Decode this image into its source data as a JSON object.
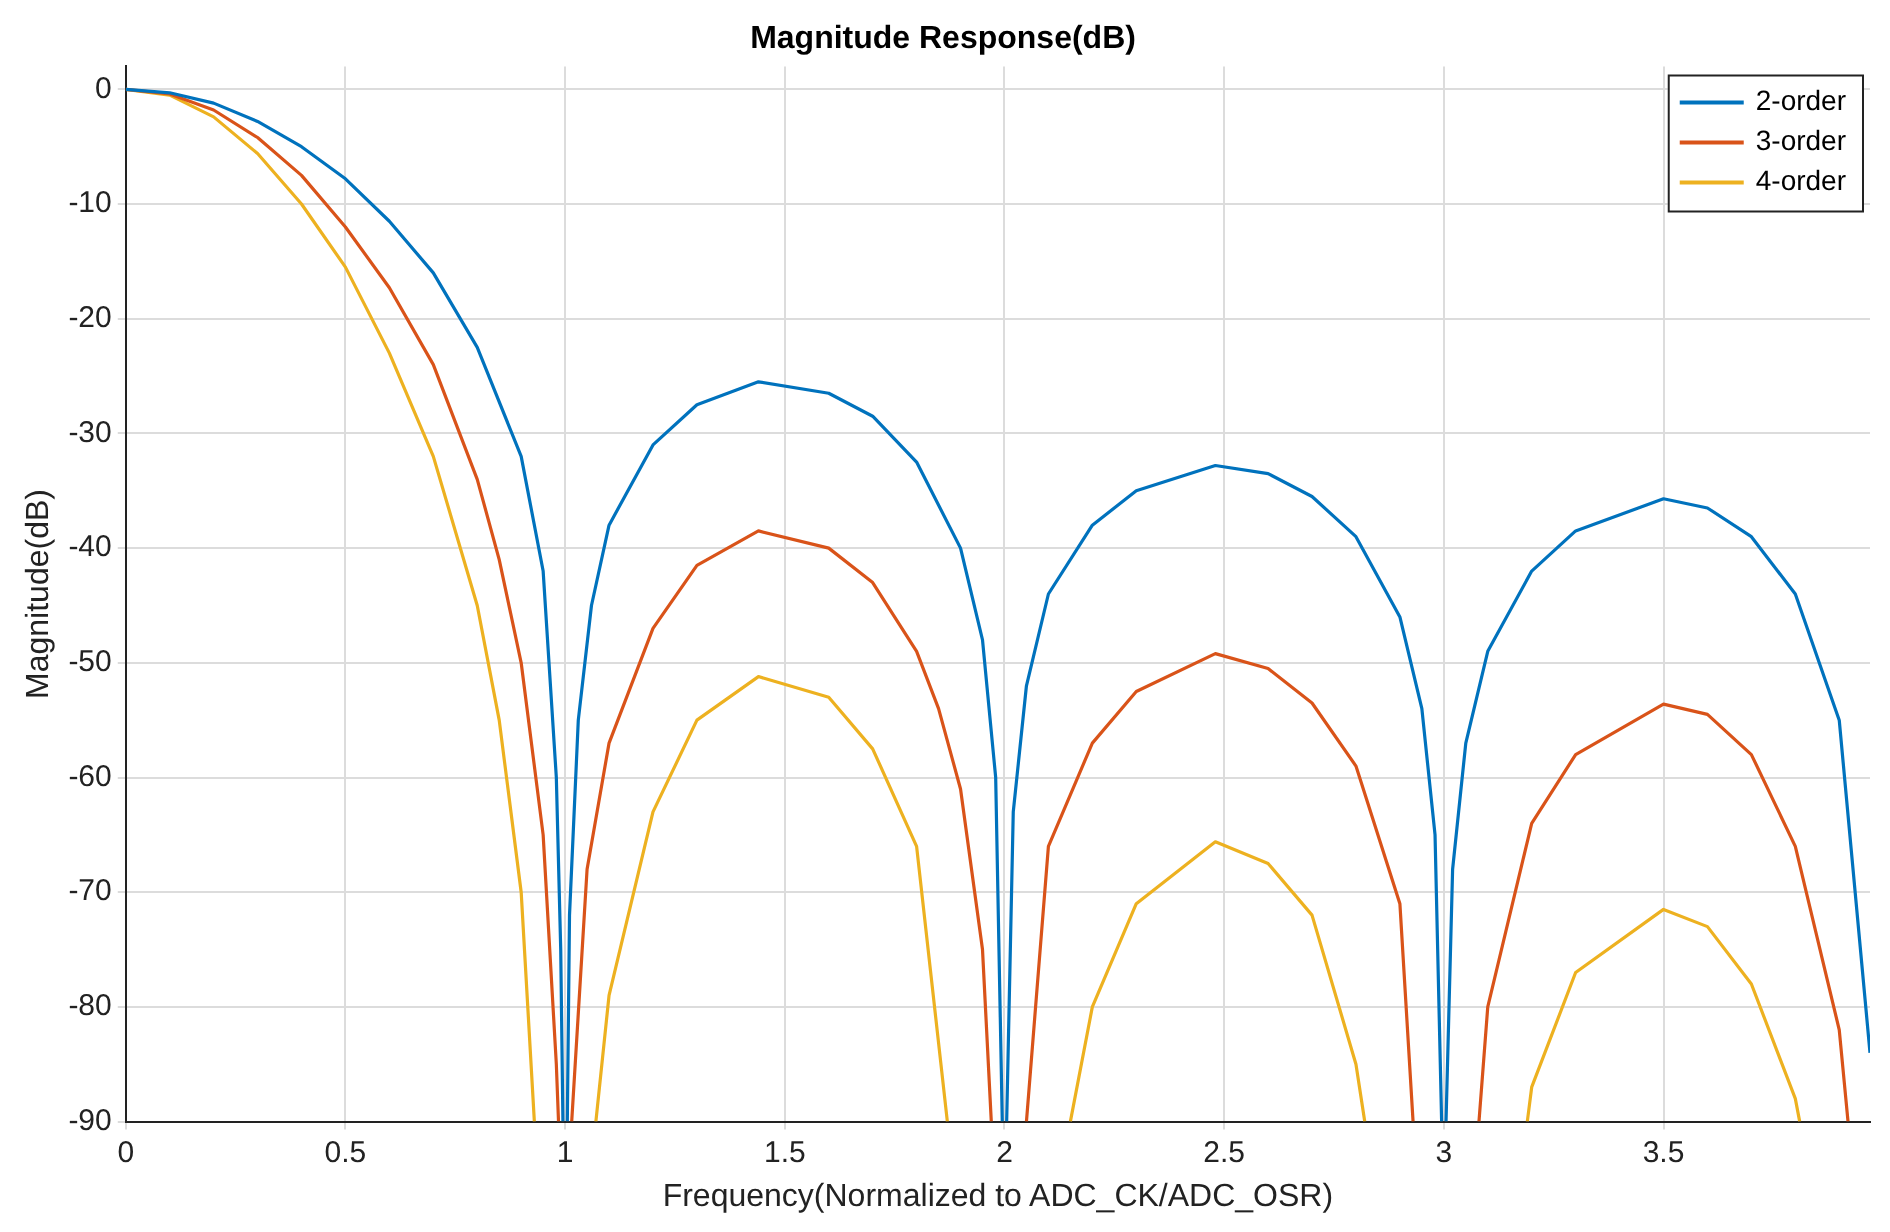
{
  "chart_data": {
    "type": "line",
    "title": "Magnitude Response(dB)",
    "xlabel": "Frequency(Normalized to ADC_CK/ADC_OSR)",
    "ylabel": "Magnitude(dB)",
    "xlim": [
      0,
      3.97
    ],
    "xticks": [
      0,
      0.5,
      1,
      1.5,
      2,
      2.5,
      3,
      3.5
    ],
    "ylim": [
      -90,
      2
    ],
    "yticks": [
      -90,
      -80,
      -70,
      -60,
      -50,
      -40,
      -30,
      -20,
      -10,
      0
    ],
    "grid": true,
    "legend": "top right",
    "marker": "none",
    "line_style": "solid",
    "series": [
      {
        "name": "2-order",
        "color": "#0072bd",
        "x": [
          0,
          0.1,
          0.2,
          0.3,
          0.4,
          0.5,
          0.6,
          0.7,
          0.8,
          0.9,
          0.95,
          0.98,
          0.99,
          0.995,
          1,
          1.005,
          1.01,
          1.03,
          1.06,
          1.1,
          1.2,
          1.3,
          1.44,
          1.6,
          1.7,
          1.8,
          1.9,
          1.95,
          1.98,
          1.995,
          2,
          2.005,
          2.02,
          2.05,
          2.1,
          2.2,
          2.3,
          2.48,
          2.6,
          2.7,
          2.8,
          2.9,
          2.95,
          2.98,
          2.995,
          3,
          3.005,
          3.02,
          3.05,
          3.1,
          3.2,
          3.3,
          3.5,
          3.6,
          3.7,
          3.8,
          3.9,
          3.97
        ],
        "values": [
          0,
          -0.3,
          -1.2,
          -2.8,
          -5,
          -7.8,
          -11.5,
          -16,
          -22.5,
          -32,
          -42,
          -60,
          -75,
          -90,
          null,
          -90,
          -72,
          -55,
          -45,
          -38,
          -31,
          -27.5,
          -25.5,
          -26.5,
          -28.5,
          -32.5,
          -40,
          -48,
          -60,
          -90,
          null,
          -90,
          -63,
          -52,
          -44,
          -38,
          -35,
          -32.8,
          -33.5,
          -35.5,
          -39,
          -46,
          -54,
          -65,
          -90,
          null,
          -90,
          -68,
          -57,
          -49,
          -42,
          -38.5,
          -35.7,
          -36.5,
          -39,
          -44,
          -55,
          -84
        ]
      },
      {
        "name": "3-order",
        "color": "#d95319",
        "x": [
          0,
          0.1,
          0.2,
          0.3,
          0.4,
          0.5,
          0.6,
          0.7,
          0.8,
          0.85,
          0.9,
          0.95,
          0.98,
          0.985,
          1,
          1.015,
          1.05,
          1.1,
          1.2,
          1.3,
          1.44,
          1.6,
          1.7,
          1.8,
          1.85,
          1.9,
          1.95,
          1.97,
          2,
          2.05,
          2.1,
          2.2,
          2.3,
          2.48,
          2.6,
          2.7,
          2.8,
          2.9,
          2.93,
          3,
          3.08,
          3.1,
          3.2,
          3.3,
          3.5,
          3.6,
          3.7,
          3.8,
          3.9,
          3.92
        ],
        "values": [
          0,
          -0.4,
          -1.8,
          -4.2,
          -7.5,
          -12,
          -17.3,
          -24,
          -34,
          -41,
          -50,
          -65,
          -85,
          -90,
          null,
          -90,
          -68,
          -57,
          -47,
          -41.5,
          -38.5,
          -40,
          -43,
          -49,
          -54,
          -61,
          -75,
          -90,
          null,
          -90,
          -66,
          -57,
          -52.5,
          -49.2,
          -50.5,
          -53.5,
          -59,
          -71,
          -90,
          null,
          -90,
          -80,
          -64,
          -58,
          -53.6,
          -54.5,
          -58,
          -66,
          -82,
          -90
        ]
      },
      {
        "name": "4-order",
        "color": "#edb120",
        "x": [
          0,
          0.1,
          0.2,
          0.3,
          0.4,
          0.5,
          0.6,
          0.7,
          0.8,
          0.85,
          0.9,
          0.93,
          1,
          1.07,
          1.1,
          1.2,
          1.3,
          1.44,
          1.6,
          1.7,
          1.8,
          1.87,
          2,
          2.15,
          2.2,
          2.3,
          2.48,
          2.6,
          2.7,
          2.8,
          2.82,
          3,
          3.19,
          3.2,
          3.3,
          3.5,
          3.6,
          3.7,
          3.8,
          3.81
        ],
        "values": [
          0,
          -0.5,
          -2.4,
          -5.6,
          -10,
          -15.5,
          -23,
          -32,
          -45,
          -55,
          -70,
          -90,
          null,
          -90,
          -79,
          -63,
          -55,
          -51.2,
          -53,
          -57.5,
          -66,
          -90,
          null,
          -90,
          -80,
          -71,
          -65.6,
          -67.5,
          -72,
          -85,
          -90,
          null,
          -90,
          -87,
          -77,
          -71.5,
          -73,
          -78,
          -88,
          -90
        ]
      }
    ]
  }
}
